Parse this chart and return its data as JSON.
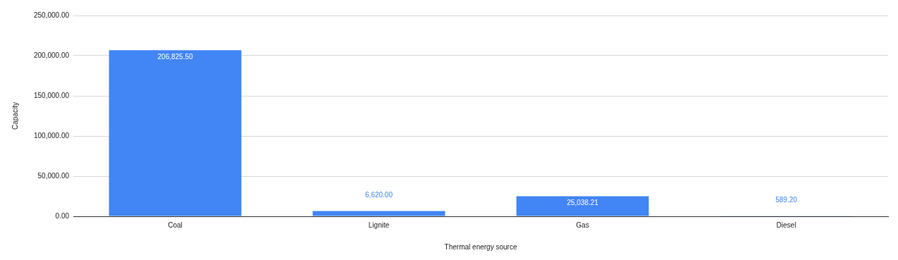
{
  "chart_data": {
    "type": "bar",
    "xlabel": "Thermal energy source",
    "ylabel": "Capacity",
    "categories": [
      "Coal",
      "Lignite",
      "Gas",
      "Diesel"
    ],
    "values": [
      206825.5,
      6620,
      25038.21,
      589.2
    ],
    "color": "#4285f4",
    "ylim": [
      0,
      250000
    ],
    "yticks": [
      {
        "value": 0,
        "label": "0.00"
      },
      {
        "value": 50000,
        "label": "50,000.00"
      },
      {
        "value": 100000,
        "label": "100,000.00"
      },
      {
        "value": 150000,
        "label": "150,000.00"
      },
      {
        "value": 200000,
        "label": "200,000.00"
      },
      {
        "value": 250000,
        "label": "250,000.00"
      }
    ],
    "value_labels": [
      "206,825.50",
      "6,620.00",
      "25,038.21",
      "589.20"
    ],
    "grid": "y",
    "legend": false
  }
}
